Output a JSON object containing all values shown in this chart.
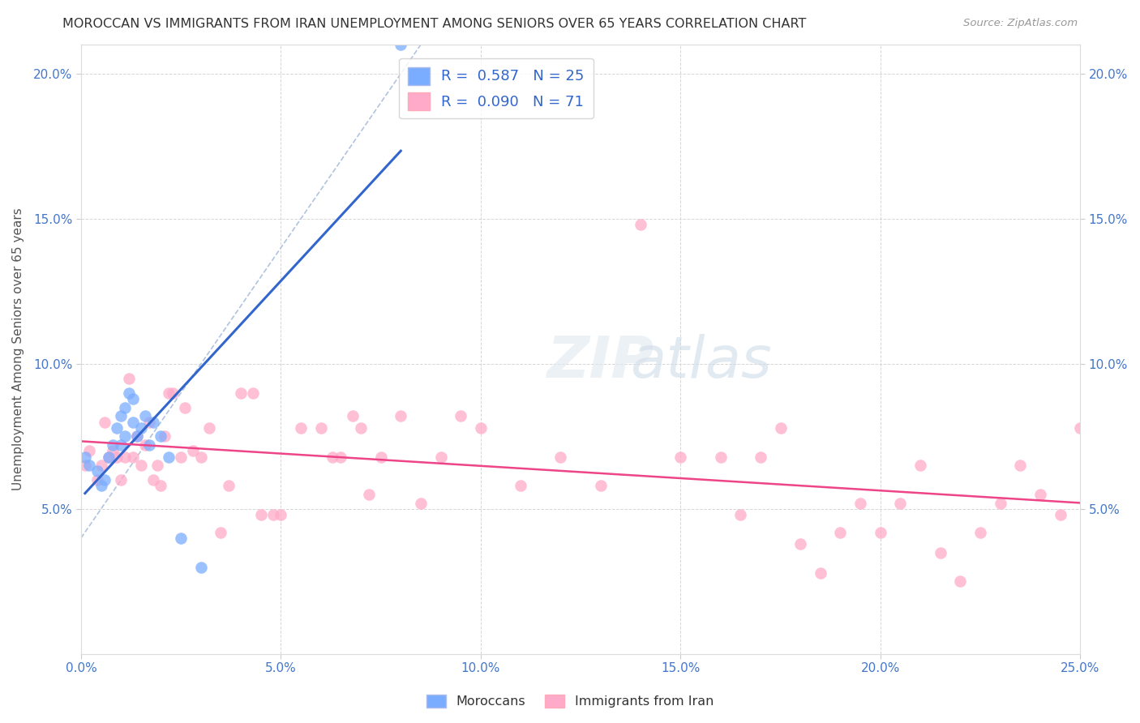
{
  "title": "MOROCCAN VS IMMIGRANTS FROM IRAN UNEMPLOYMENT AMONG SENIORS OVER 65 YEARS CORRELATION CHART",
  "source": "Source: ZipAtlas.com",
  "ylabel": "Unemployment Among Seniors over 65 years",
  "xlim": [
    0.0,
    0.25
  ],
  "ylim": [
    0.0,
    0.21
  ],
  "x_ticks": [
    0.0,
    0.05,
    0.1,
    0.15,
    0.2,
    0.25
  ],
  "x_tick_labels": [
    "0.0%",
    "5.0%",
    "10.0%",
    "15.0%",
    "20.0%",
    "25.0%"
  ],
  "y_ticks": [
    0.05,
    0.1,
    0.15,
    0.2
  ],
  "y_tick_labels": [
    "5.0%",
    "10.0%",
    "15.0%",
    "20.0%"
  ],
  "moroccan_R": 0.587,
  "moroccan_N": 25,
  "iran_R": 0.09,
  "iran_N": 71,
  "moroccan_color": "#7aadff",
  "iran_color": "#ffaac8",
  "moroccan_line_color": "#3366cc",
  "iran_line_color": "#ee4488",
  "dashed_line_color": "#b0c4de",
  "moroccan_x": [
    0.001,
    0.002,
    0.004,
    0.005,
    0.006,
    0.007,
    0.008,
    0.009,
    0.01,
    0.01,
    0.011,
    0.011,
    0.012,
    0.013,
    0.013,
    0.014,
    0.015,
    0.016,
    0.017,
    0.018,
    0.02,
    0.022,
    0.025,
    0.03,
    0.08
  ],
  "moroccan_y": [
    0.068,
    0.065,
    0.063,
    0.058,
    0.06,
    0.068,
    0.072,
    0.078,
    0.072,
    0.082,
    0.075,
    0.085,
    0.09,
    0.08,
    0.088,
    0.075,
    0.078,
    0.082,
    0.072,
    0.08,
    0.075,
    0.068,
    0.04,
    0.03,
    0.21
  ],
  "iran_x": [
    0.001,
    0.002,
    0.004,
    0.005,
    0.006,
    0.007,
    0.008,
    0.009,
    0.01,
    0.011,
    0.012,
    0.013,
    0.014,
    0.015,
    0.016,
    0.017,
    0.018,
    0.019,
    0.02,
    0.021,
    0.022,
    0.023,
    0.025,
    0.026,
    0.028,
    0.03,
    0.032,
    0.035,
    0.037,
    0.04,
    0.043,
    0.045,
    0.048,
    0.05,
    0.055,
    0.06,
    0.063,
    0.065,
    0.068,
    0.07,
    0.072,
    0.075,
    0.08,
    0.085,
    0.09,
    0.095,
    0.1,
    0.11,
    0.12,
    0.13,
    0.14,
    0.15,
    0.16,
    0.165,
    0.17,
    0.175,
    0.18,
    0.185,
    0.19,
    0.195,
    0.2,
    0.205,
    0.21,
    0.215,
    0.22,
    0.225,
    0.23,
    0.235,
    0.24,
    0.245,
    0.25
  ],
  "iran_y": [
    0.065,
    0.07,
    0.06,
    0.065,
    0.08,
    0.068,
    0.07,
    0.068,
    0.06,
    0.068,
    0.095,
    0.068,
    0.075,
    0.065,
    0.072,
    0.08,
    0.06,
    0.065,
    0.058,
    0.075,
    0.09,
    0.09,
    0.068,
    0.085,
    0.07,
    0.068,
    0.078,
    0.042,
    0.058,
    0.09,
    0.09,
    0.048,
    0.048,
    0.048,
    0.078,
    0.078,
    0.068,
    0.068,
    0.082,
    0.078,
    0.055,
    0.068,
    0.082,
    0.052,
    0.068,
    0.082,
    0.078,
    0.058,
    0.068,
    0.058,
    0.148,
    0.068,
    0.068,
    0.048,
    0.068,
    0.078,
    0.038,
    0.028,
    0.042,
    0.052,
    0.042,
    0.052,
    0.065,
    0.035,
    0.025,
    0.042,
    0.052,
    0.065,
    0.055,
    0.048,
    0.078
  ]
}
